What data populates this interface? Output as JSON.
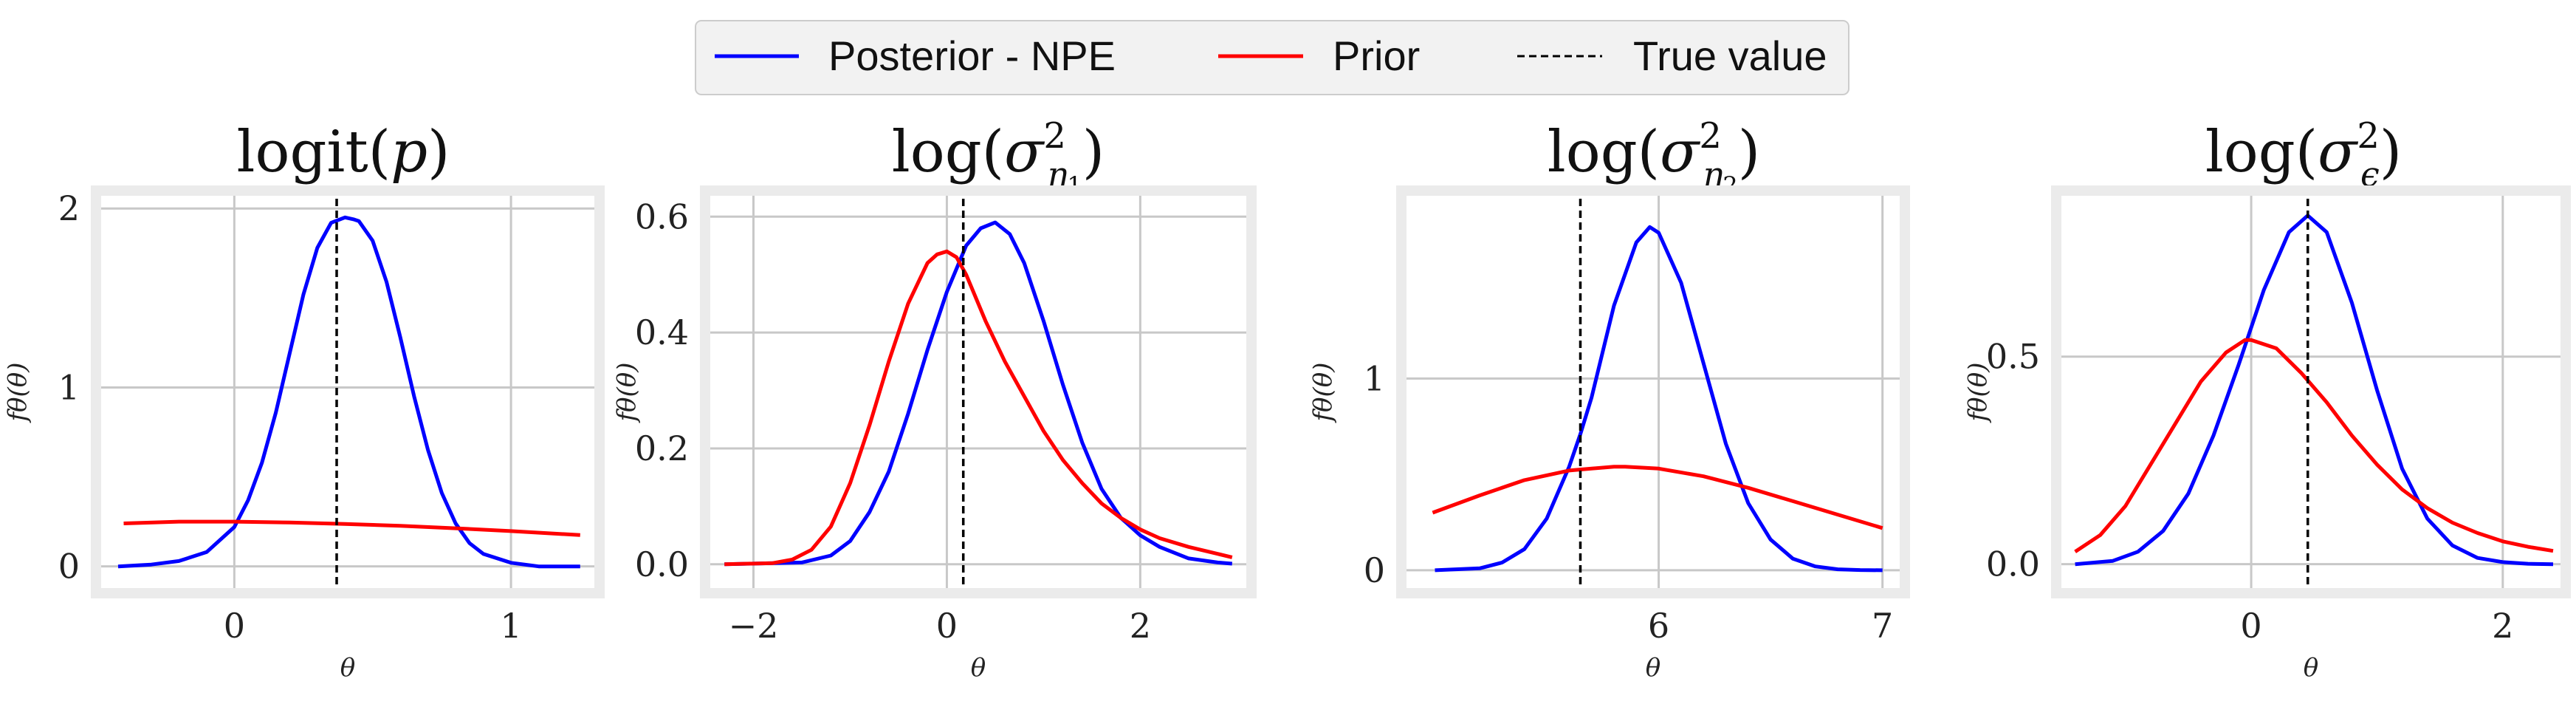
{
  "legend": {
    "entries": [
      {
        "label": "Posterior - NPE",
        "color": "#0000ff",
        "style": "solid"
      },
      {
        "label": "Prior",
        "color": "#ff0000",
        "style": "solid"
      },
      {
        "label": "True value",
        "color": "#000000",
        "style": "dashed"
      }
    ],
    "placement": "top-center"
  },
  "colors": {
    "posterior": "#0000ff",
    "prior": "#ff0000",
    "true_value": "#000000",
    "grid": "#c8c8c8",
    "frame": "#ebebeb"
  },
  "chart_data": [
    {
      "type": "line",
      "title": "logit(p)",
      "xlabel": "θ",
      "ylabel": "fθ(θ)",
      "xlim": [
        -0.5,
        1.32
      ],
      "ylim": [
        -0.15,
        2.1
      ],
      "xticks": [
        0,
        1
      ],
      "xtick_labels": [
        "0",
        "1"
      ],
      "yticks": [
        0,
        1,
        2
      ],
      "ytick_labels": [
        "0",
        "1",
        "2"
      ],
      "grid": true,
      "true_value": 0.37,
      "series": [
        {
          "name": "Posterior - NPE",
          "color": "#0000ff",
          "x": [
            -0.42,
            -0.3,
            -0.2,
            -0.1,
            0.0,
            0.05,
            0.1,
            0.15,
            0.2,
            0.25,
            0.3,
            0.35,
            0.4,
            0.43,
            0.45,
            0.5,
            0.55,
            0.6,
            0.65,
            0.7,
            0.75,
            0.8,
            0.85,
            0.9,
            1.0,
            1.1,
            1.25
          ],
          "y": [
            0.0,
            0.01,
            0.03,
            0.08,
            0.22,
            0.37,
            0.58,
            0.86,
            1.19,
            1.52,
            1.78,
            1.92,
            1.95,
            1.94,
            1.93,
            1.82,
            1.59,
            1.28,
            0.95,
            0.65,
            0.41,
            0.24,
            0.13,
            0.07,
            0.02,
            0.0,
            0.0
          ]
        },
        {
          "name": "Prior",
          "color": "#ff0000",
          "x": [
            -0.4,
            -0.2,
            0.0,
            0.2,
            0.4,
            0.6,
            0.8,
            1.0,
            1.25
          ],
          "y": [
            0.24,
            0.25,
            0.25,
            0.245,
            0.237,
            0.227,
            0.213,
            0.197,
            0.175
          ]
        }
      ]
    },
    {
      "type": "line",
      "title": "log(σ²η₁)",
      "xlabel": "θ",
      "ylabel": "fθ(θ)",
      "xlim": [
        -2.5,
        3.15
      ],
      "ylim": [
        -0.05,
        0.645
      ],
      "xticks": [
        -2,
        0,
        2
      ],
      "xtick_labels": [
        "−2",
        "0",
        "2"
      ],
      "yticks": [
        0.0,
        0.2,
        0.4,
        0.6
      ],
      "ytick_labels": [
        "0.0",
        "0.2",
        "0.4",
        "0.6"
      ],
      "grid": true,
      "true_value": 0.17,
      "series": [
        {
          "name": "Posterior - NPE",
          "color": "#0000ff",
          "x": [
            -2.3,
            -1.5,
            -1.2,
            -1.0,
            -0.8,
            -0.6,
            -0.4,
            -0.2,
            0.0,
            0.2,
            0.35,
            0.5,
            0.65,
            0.8,
            1.0,
            1.2,
            1.4,
            1.6,
            1.8,
            2.0,
            2.2,
            2.5,
            2.8,
            2.95
          ],
          "y": [
            0.0,
            0.003,
            0.015,
            0.04,
            0.09,
            0.16,
            0.26,
            0.37,
            0.47,
            0.55,
            0.58,
            0.59,
            0.57,
            0.52,
            0.42,
            0.31,
            0.21,
            0.13,
            0.08,
            0.05,
            0.03,
            0.01,
            0.003,
            0.001
          ]
        },
        {
          "name": "Prior",
          "color": "#ff0000",
          "x": [
            -2.3,
            -1.8,
            -1.6,
            -1.4,
            -1.2,
            -1.0,
            -0.8,
            -0.6,
            -0.4,
            -0.2,
            -0.1,
            0.0,
            0.1,
            0.2,
            0.4,
            0.6,
            0.8,
            1.0,
            1.2,
            1.4,
            1.6,
            1.8,
            2.0,
            2.2,
            2.5,
            2.8,
            2.95
          ],
          "y": [
            0.0,
            0.002,
            0.008,
            0.025,
            0.065,
            0.14,
            0.24,
            0.35,
            0.45,
            0.52,
            0.535,
            0.54,
            0.53,
            0.5,
            0.42,
            0.35,
            0.29,
            0.23,
            0.18,
            0.14,
            0.105,
            0.08,
            0.06,
            0.045,
            0.03,
            0.018,
            0.012
          ]
        }
      ]
    },
    {
      "type": "line",
      "title": "log(σ²η₂)",
      "xlabel": "θ",
      "ylabel": "fθ(θ)",
      "xlim": [
        4.85,
        7.1
      ],
      "ylim": [
        -0.12,
        1.98
      ],
      "xticks": [
        6,
        7
      ],
      "xtick_labels": [
        "6",
        "7"
      ],
      "yticks": [
        0,
        1
      ],
      "ytick_labels": [
        "0",
        "1"
      ],
      "grid": true,
      "true_value": 5.65,
      "series": [
        {
          "name": "Posterior - NPE",
          "color": "#0000ff",
          "x": [
            5.0,
            5.2,
            5.3,
            5.4,
            5.5,
            5.6,
            5.65,
            5.7,
            5.8,
            5.9,
            5.96,
            6.0,
            6.1,
            6.2,
            6.3,
            6.4,
            6.5,
            6.6,
            6.7,
            6.8,
            6.9,
            7.0
          ],
          "y": [
            0.0,
            0.01,
            0.04,
            0.11,
            0.27,
            0.54,
            0.71,
            0.9,
            1.38,
            1.71,
            1.79,
            1.76,
            1.5,
            1.08,
            0.66,
            0.35,
            0.16,
            0.06,
            0.02,
            0.005,
            0.001,
            0.0
          ]
        },
        {
          "name": "Prior",
          "color": "#ff0000",
          "x": [
            4.99,
            5.2,
            5.4,
            5.6,
            5.8,
            5.85,
            6.0,
            6.2,
            6.4,
            6.6,
            6.8,
            7.0
          ],
          "y": [
            0.3,
            0.39,
            0.47,
            0.52,
            0.54,
            0.54,
            0.53,
            0.49,
            0.43,
            0.36,
            0.29,
            0.22
          ]
        }
      ]
    },
    {
      "type": "line",
      "title": "log(σ²ϵ)",
      "xlabel": "θ",
      "ylabel": "fθ(θ)",
      "xlim": [
        -1.55,
        2.5
      ],
      "ylim": [
        -0.07,
        0.9
      ],
      "xticks": [
        0,
        2
      ],
      "xtick_labels": [
        "0",
        "2"
      ],
      "yticks": [
        0.0,
        0.5
      ],
      "ytick_labels": [
        "0.0",
        "0.5"
      ],
      "grid": true,
      "true_value": 0.45,
      "series": [
        {
          "name": "Posterior - NPE",
          "color": "#0000ff",
          "x": [
            -1.4,
            -1.1,
            -0.9,
            -0.7,
            -0.5,
            -0.3,
            -0.1,
            0.1,
            0.3,
            0.45,
            0.6,
            0.8,
            1.0,
            1.2,
            1.4,
            1.6,
            1.8,
            2.0,
            2.2,
            2.4
          ],
          "y": [
            0.0,
            0.008,
            0.03,
            0.08,
            0.17,
            0.31,
            0.48,
            0.66,
            0.8,
            0.84,
            0.8,
            0.63,
            0.42,
            0.23,
            0.11,
            0.045,
            0.015,
            0.005,
            0.001,
            0.0
          ]
        },
        {
          "name": "Prior",
          "color": "#ff0000",
          "x": [
            -1.4,
            -1.2,
            -1.0,
            -0.8,
            -0.6,
            -0.4,
            -0.2,
            -0.05,
            0.0,
            0.2,
            0.4,
            0.6,
            0.8,
            1.0,
            1.2,
            1.4,
            1.6,
            1.8,
            2.0,
            2.2,
            2.4
          ],
          "y": [
            0.03,
            0.07,
            0.14,
            0.24,
            0.34,
            0.44,
            0.51,
            0.54,
            0.54,
            0.52,
            0.46,
            0.39,
            0.31,
            0.24,
            0.18,
            0.135,
            0.1,
            0.075,
            0.055,
            0.042,
            0.032
          ]
        }
      ]
    }
  ]
}
